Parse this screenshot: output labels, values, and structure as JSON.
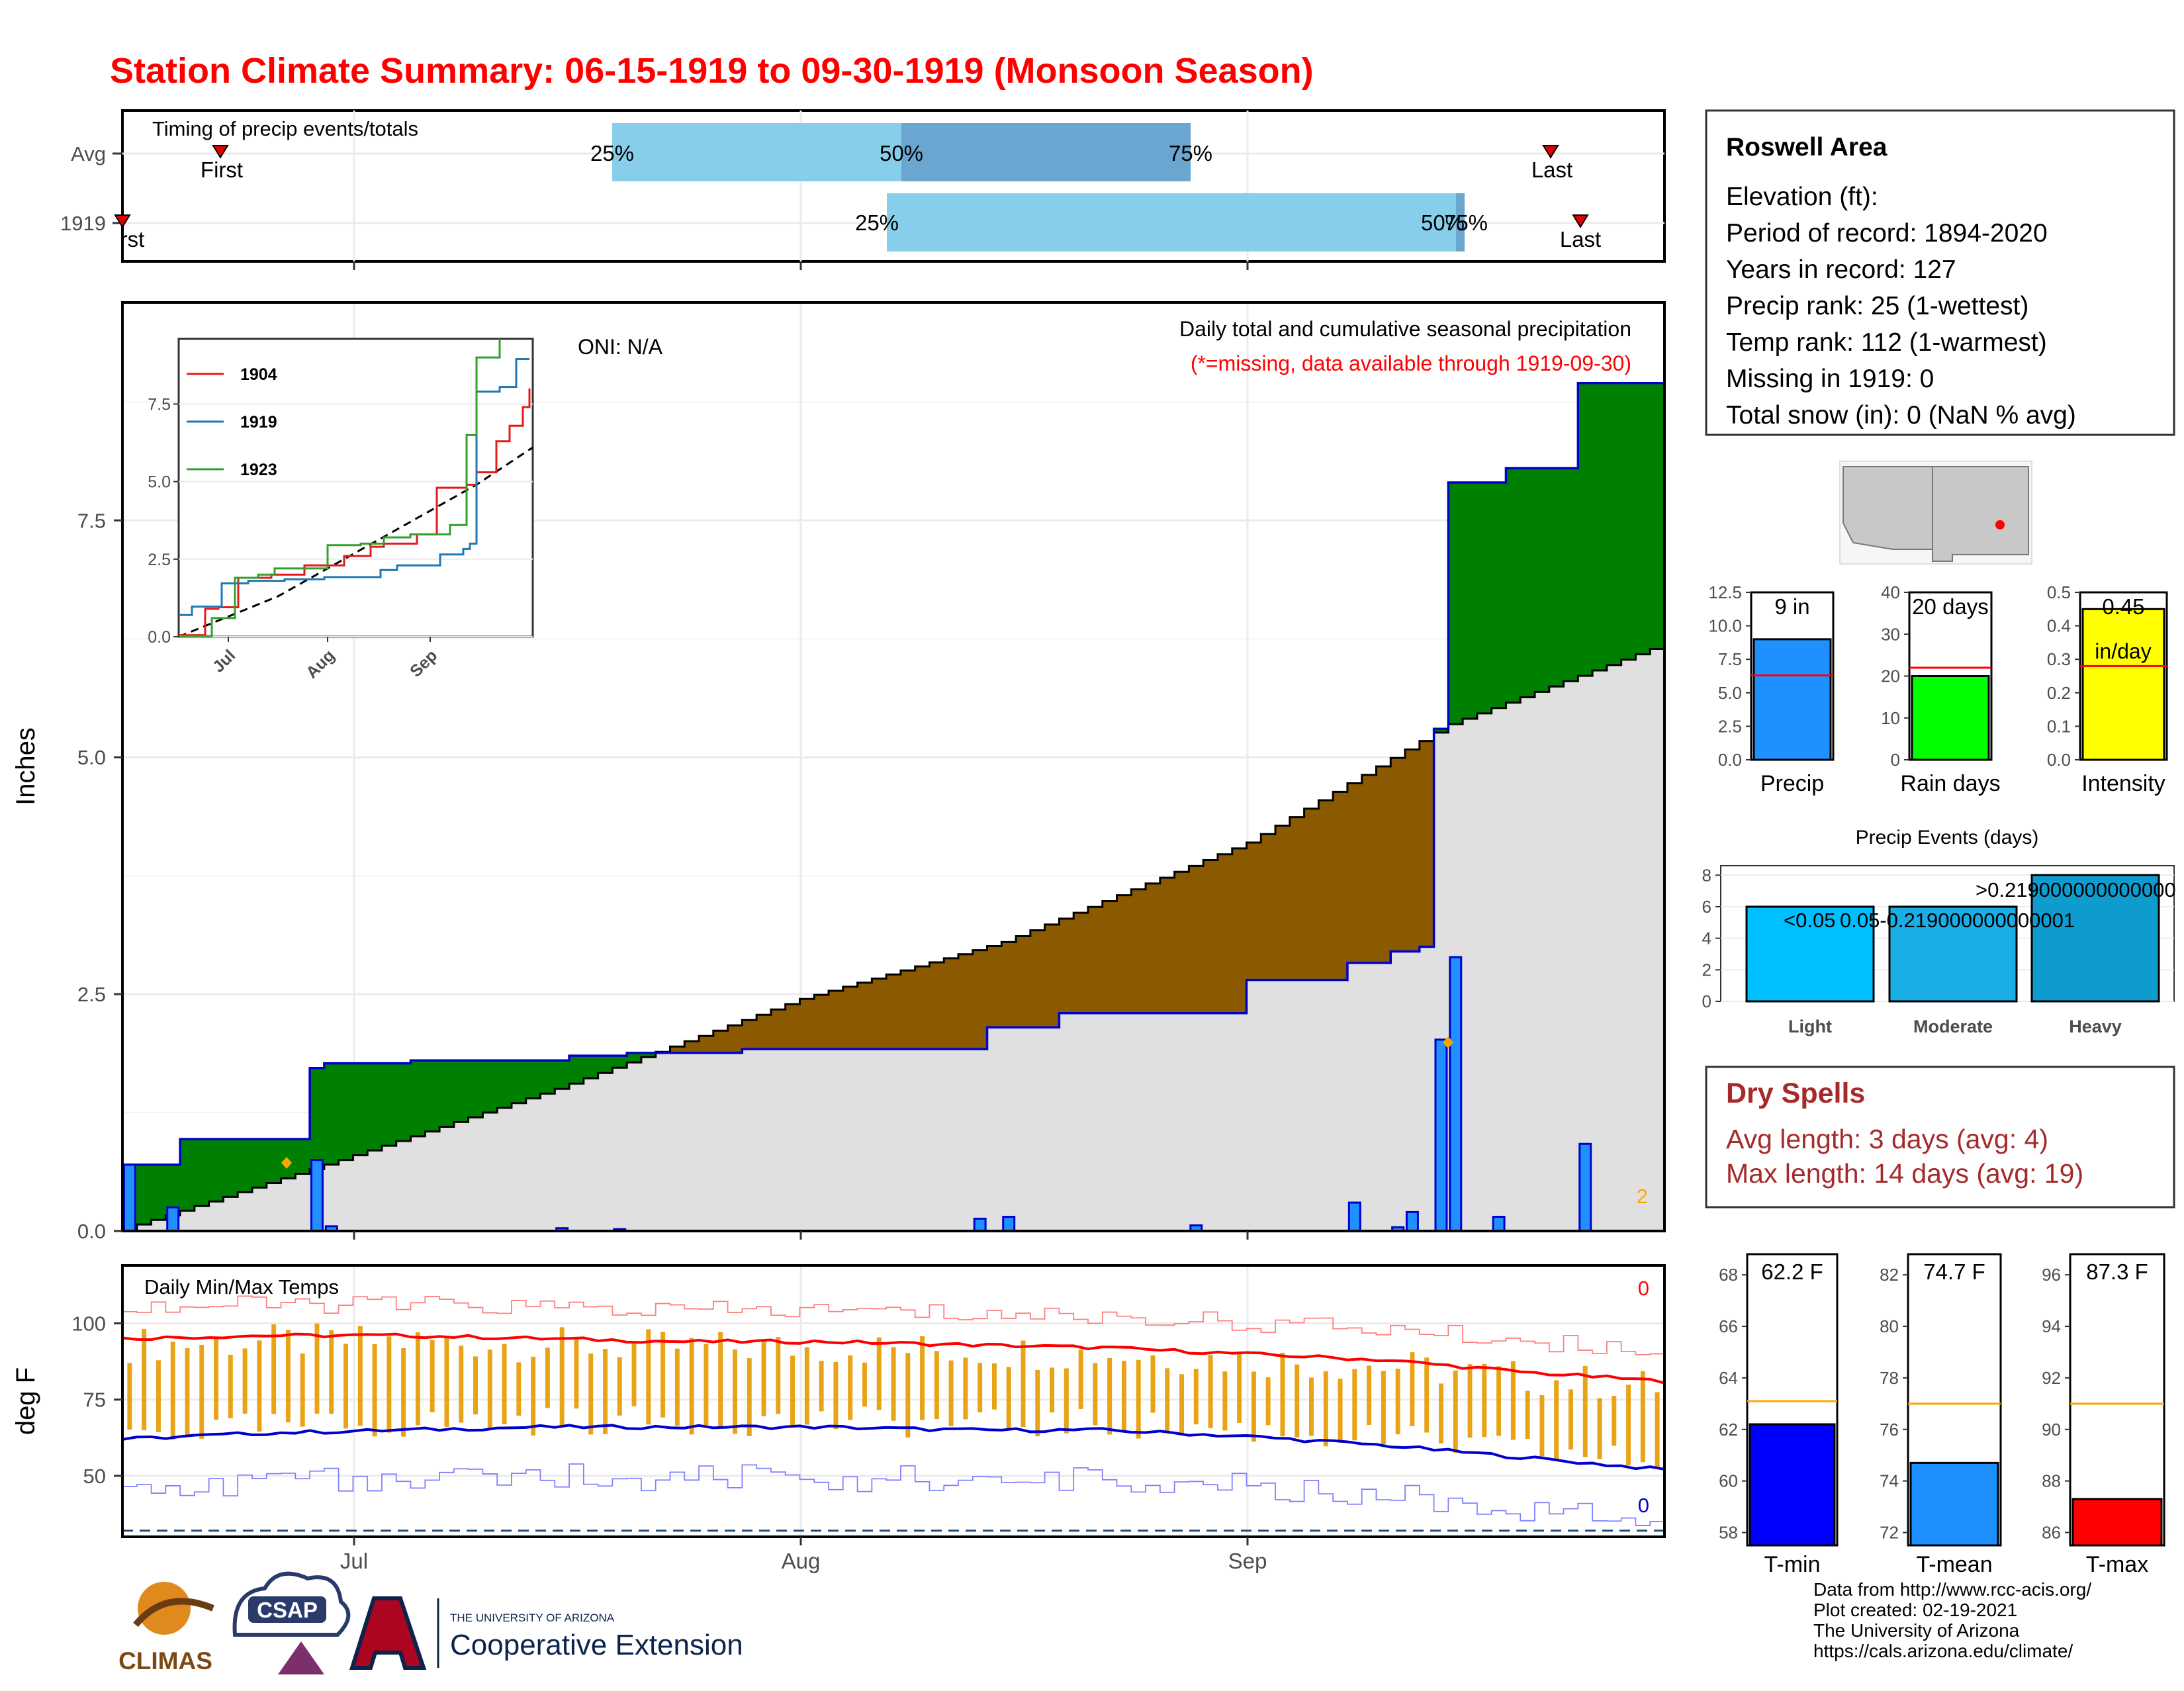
{
  "title": "Station Climate Summary: 06-15-1919 to 09-30-1919 (Monsoon Season)",
  "timing": {
    "label": "Timing of precip events/totals",
    "rows": [
      "Avg",
      "1919"
    ],
    "avg": {
      "first": "First",
      "last": "Last",
      "p25": "25%",
      "p50": "50%",
      "p75": "75%"
    },
    "y1919": {
      "first": "rst",
      "last": "Last",
      "p25": "25%",
      "p50": "50%",
      "p75": "75%"
    }
  },
  "main": {
    "annotation_title": "Daily total and cumulative seasonal precipitation",
    "annotation_sub": "(*=missing, data available through 1919-09-30)",
    "oni": "ONI: N/A",
    "ylabel": "Inches",
    "yticks": [
      "0.0",
      "2.5",
      "5.0",
      "7.5"
    ],
    "missing_count": "2"
  },
  "inset": {
    "legend": [
      "1904",
      "1919",
      "1923"
    ],
    "yticks": [
      "0.0",
      "2.5",
      "5.0",
      "7.5"
    ],
    "xticks": [
      "Jul",
      "Aug",
      "Sep"
    ]
  },
  "temps": {
    "label": "Daily Min/Max Temps",
    "ylabel": "deg F",
    "yticks": [
      "50",
      "75",
      "100"
    ],
    "max_missing": "0",
    "min_missing": "0"
  },
  "xaxis": {
    "ticks": [
      "Jul",
      "Aug",
      "Sep"
    ]
  },
  "info": {
    "station": "Roswell Area",
    "lines": [
      "Elevation (ft):",
      "Period of record: 1894-2020",
      "Years in record: 127",
      "Precip rank: 25 (1-wettest)",
      "Temp rank: 112 (1-warmest)",
      "Missing in 1919: 0",
      "Total snow (in): 0 (NaN % avg)"
    ]
  },
  "summary_bars": {
    "precip": {
      "label": "Precip",
      "value_label": "9 in",
      "yticks": [
        "0.0",
        "2.5",
        "5.0",
        "7.5",
        "10.0",
        "12.5"
      ]
    },
    "rain_days": {
      "label": "Rain days",
      "value_label": "20 days",
      "yticks": [
        "0",
        "10",
        "20",
        "30",
        "40"
      ]
    },
    "intensity": {
      "label": "Intensity",
      "value_label": "0.45",
      "unit": "in/day",
      "yticks": [
        "0.0",
        "0.1",
        "0.2",
        "0.3",
        "0.4",
        "0.5"
      ]
    }
  },
  "events": {
    "title": "Precip Events (days)",
    "categories": [
      "Light",
      "Moderate",
      "Heavy"
    ],
    "bar_labels": [
      "<0.05",
      "0.05-0.219000000000001",
      ">0.219000000000000"
    ],
    "yticks": [
      "0",
      "2",
      "4",
      "6",
      "8"
    ]
  },
  "dry_spells": {
    "title": "Dry Spells",
    "avg": "Avg length: 3 days (avg: 4)",
    "max": "Max length: 14 days (avg: 19)"
  },
  "temp_bars": {
    "tmin": {
      "label": "T-min",
      "value_label": "62.2 F",
      "yticks": [
        "58",
        "60",
        "62",
        "64",
        "66",
        "68"
      ]
    },
    "tmean": {
      "label": "T-mean",
      "value_label": "74.7 F",
      "yticks": [
        "72",
        "74",
        "76",
        "78",
        "80",
        "82"
      ]
    },
    "tmax": {
      "label": "T-max",
      "value_label": "87.3 F",
      "yticks": [
        "86",
        "88",
        "90",
        "92",
        "94",
        "96"
      ]
    }
  },
  "footer": [
    "Data from http://www.rcc-acis.org/",
    "Plot created: 02-19-2021",
    "The University of Arizona",
    "https://cals.arizona.edu/climate/"
  ],
  "logos": {
    "climas": "CLIMAS",
    "csap": "CSAP",
    "ua_small": "THE UNIVERSITY OF ARIZONA",
    "ua_big": "Cooperative Extension"
  },
  "colors": {
    "title": "#ff0000",
    "wet": "#008000",
    "dry": "#8b5a00",
    "normal_fill": "#e0e0e0",
    "bars": "#1e90ff",
    "temp_bar": "#e8a317",
    "tmax_line": "#ff0000",
    "tmin_line": "#0000cd",
    "dry_spell_text": "#a52a2a"
  },
  "chart_data": [
    {
      "type": "area",
      "title": "Daily total and cumulative seasonal precipitation",
      "ylabel": "Inches",
      "ylim": [
        0,
        9.8
      ],
      "x_start": "1919-06-15",
      "x_end": "1919-09-30",
      "cumulative_1919": [
        [
          "06-15",
          0.7
        ],
        [
          "06-19",
          0.97
        ],
        [
          "06-28",
          1.72
        ],
        [
          "06-29",
          1.77
        ],
        [
          "07-05",
          1.8
        ],
        [
          "07-16",
          1.85
        ],
        [
          "07-20",
          1.88
        ],
        [
          "07-28",
          1.92
        ],
        [
          "08-14",
          2.15
        ],
        [
          "08-19",
          2.3
        ],
        [
          "09-01",
          2.65
        ],
        [
          "09-08",
          2.83
        ],
        [
          "09-11",
          2.95
        ],
        [
          "09-13",
          3.0
        ],
        [
          "09-14",
          5.3
        ],
        [
          "09-15",
          7.9
        ],
        [
          "09-19",
          8.05
        ],
        [
          "09-24",
          8.95
        ],
        [
          "09-30",
          8.95
        ]
      ],
      "cumulative_normal": [
        [
          "06-15",
          0.02
        ],
        [
          "06-30",
          0.75
        ],
        [
          "07-15",
          1.5
        ],
        [
          "08-01",
          2.45
        ],
        [
          "08-15",
          3.05
        ],
        [
          "09-01",
          4.1
        ],
        [
          "09-15",
          5.35
        ],
        [
          "09-30",
          6.2
        ]
      ],
      "daily_precip": [
        [
          "06-15",
          0.7
        ],
        [
          "06-18",
          0.25
        ],
        [
          "06-28",
          0.75
        ],
        [
          "06-29",
          0.05
        ],
        [
          "07-15",
          0.03
        ],
        [
          "07-19",
          0.02
        ],
        [
          "08-13",
          0.13
        ],
        [
          "08-15",
          0.15
        ],
        [
          "08-28",
          0.06
        ],
        [
          "09-08",
          0.3
        ],
        [
          "09-11",
          0.04
        ],
        [
          "09-12",
          0.2
        ],
        [
          "09-14",
          2.02
        ],
        [
          "09-15",
          2.89
        ],
        [
          "09-18",
          0.15
        ],
        [
          "09-24",
          0.92
        ]
      ]
    },
    {
      "type": "line",
      "title": "Daily Min/Max Temps",
      "ylabel": "deg F",
      "ylim": [
        30,
        119
      ],
      "series": [
        {
          "name": "avg max",
          "values": [
            95,
            96,
            96,
            95,
            94,
            94,
            93,
            92,
            90,
            88,
            84,
            81
          ]
        },
        {
          "name": "avg min",
          "values": [
            62,
            64,
            65,
            66,
            66,
            66,
            65,
            65,
            63,
            60,
            56,
            52
          ]
        }
      ]
    },
    {
      "type": "bar",
      "categories": [
        "Precip",
        "Rain days",
        "Intensity"
      ],
      "values": [
        9,
        20,
        0.45
      ],
      "averages": [
        6.3,
        22,
        0.28
      ]
    },
    {
      "type": "bar",
      "title": "Precip Events (days)",
      "categories": [
        "Light",
        "Moderate",
        "Heavy"
      ],
      "values": [
        6,
        6,
        8
      ],
      "ylim": [
        0,
        8
      ]
    },
    {
      "type": "bar",
      "categories": [
        "T-min",
        "T-mean",
        "T-max"
      ],
      "values": [
        62.2,
        74.7,
        87.3
      ],
      "averages": [
        63.1,
        77.0,
        91.0
      ]
    }
  ]
}
